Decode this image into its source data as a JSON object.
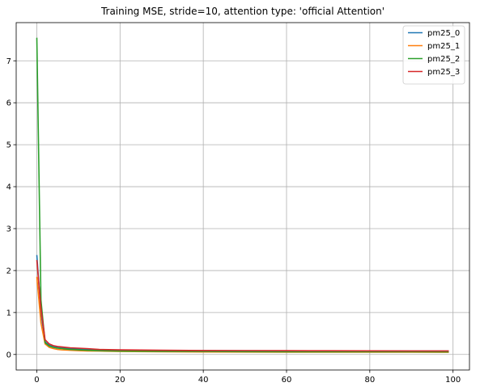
{
  "chart_data": {
    "type": "line",
    "title": "Training MSE, stride=10, attention type: 'official Attention'",
    "xlabel": "",
    "ylabel": "",
    "xlim": [
      -4.95,
      103.95
    ],
    "ylim": [
      -0.37,
      7.91
    ],
    "xticks": [
      0,
      20,
      40,
      60,
      80,
      100
    ],
    "yticks": [
      0,
      1,
      2,
      3,
      4,
      5,
      6,
      7
    ],
    "grid": true,
    "legend": "top-right",
    "series": [
      {
        "name": "pm25_0",
        "color": "#1f77b4",
        "x": [
          0,
          1,
          2,
          3,
          4,
          5,
          6,
          8,
          10,
          12,
          15,
          20,
          30,
          40,
          50,
          60,
          70,
          80,
          90,
          99
        ],
        "y": [
          2.37,
          1.0,
          0.3,
          0.22,
          0.19,
          0.17,
          0.16,
          0.14,
          0.13,
          0.12,
          0.11,
          0.1,
          0.095,
          0.09,
          0.088,
          0.086,
          0.085,
          0.084,
          0.083,
          0.082
        ]
      },
      {
        "name": "pm25_1",
        "color": "#ff7f0e",
        "x": [
          0,
          1,
          2,
          3,
          4,
          5,
          6,
          8,
          10,
          12,
          15,
          20,
          30,
          40,
          50,
          60,
          70,
          80,
          90,
          99
        ],
        "y": [
          1.85,
          0.75,
          0.25,
          0.17,
          0.14,
          0.12,
          0.11,
          0.1,
          0.09,
          0.085,
          0.08,
          0.07,
          0.065,
          0.06,
          0.058,
          0.056,
          0.055,
          0.054,
          0.053,
          0.052
        ]
      },
      {
        "name": "pm25_2",
        "color": "#2ca02c",
        "x": [
          0,
          1,
          2,
          3,
          4,
          5,
          6,
          8,
          10,
          12,
          15,
          20,
          30,
          40,
          50,
          60,
          70,
          80,
          90,
          99
        ],
        "y": [
          7.55,
          1.3,
          0.28,
          0.2,
          0.17,
          0.15,
          0.14,
          0.12,
          0.11,
          0.1,
          0.09,
          0.08,
          0.075,
          0.07,
          0.068,
          0.066,
          0.065,
          0.064,
          0.063,
          0.062
        ]
      },
      {
        "name": "pm25_3",
        "color": "#d62728",
        "x": [
          0,
          1,
          2,
          3,
          4,
          5,
          6,
          8,
          10,
          12,
          15,
          20,
          30,
          40,
          50,
          60,
          70,
          80,
          90,
          99
        ],
        "y": [
          2.25,
          1.1,
          0.35,
          0.25,
          0.21,
          0.19,
          0.18,
          0.16,
          0.15,
          0.14,
          0.12,
          0.11,
          0.1,
          0.095,
          0.092,
          0.09,
          0.088,
          0.086,
          0.085,
          0.084
        ]
      }
    ]
  }
}
